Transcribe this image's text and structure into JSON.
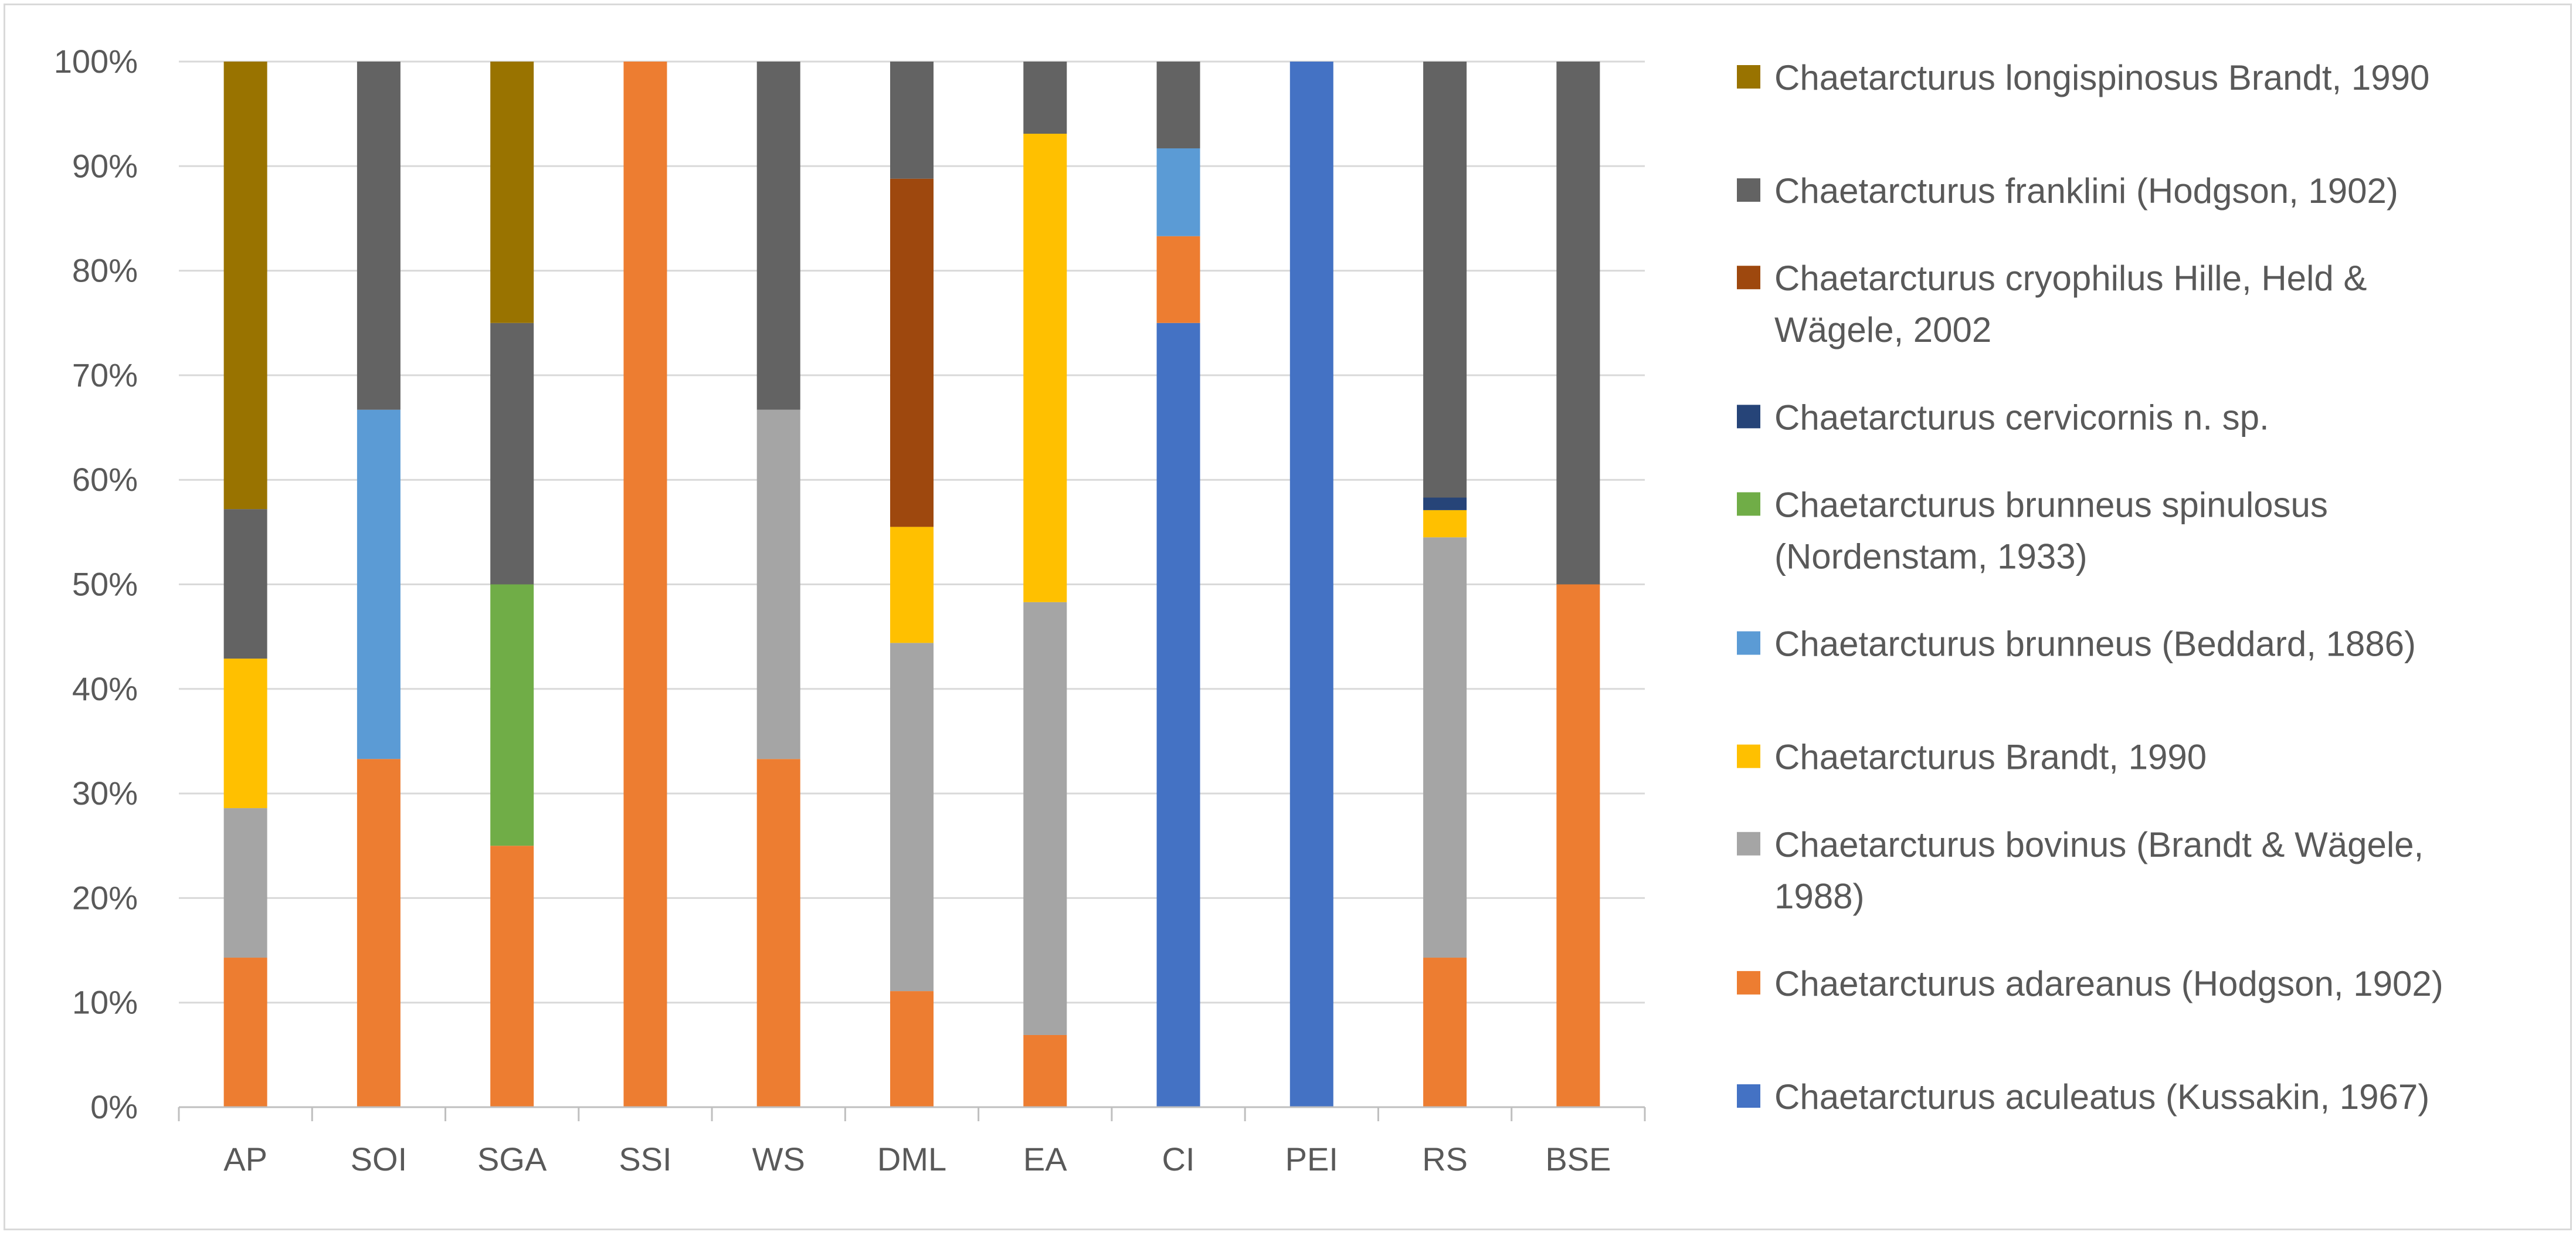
{
  "chart_data": {
    "type": "bar",
    "stacking": "percent",
    "title": "",
    "xlabel": "",
    "ylabel": "",
    "ylim": [
      0,
      100
    ],
    "y_ticks": [
      "0%",
      "10%",
      "20%",
      "30%",
      "40%",
      "50%",
      "60%",
      "70%",
      "80%",
      "90%",
      "100%"
    ],
    "grid": true,
    "legend_position": "right",
    "categories": [
      "AP",
      "SOI",
      "SGA",
      "SSI",
      "WS",
      "DML",
      "EA",
      "CI",
      "PEI",
      "RS",
      "BSE"
    ],
    "series": [
      {
        "name": "Chaetarcturus aculeatus (Kussakin, 1967)",
        "legend_lines": [
          "Chaetarcturus aculeatus (Kussakin, 1967)"
        ],
        "color": "#4472C4",
        "values": [
          0,
          0,
          0,
          0,
          0,
          0,
          0,
          75,
          100,
          0,
          0
        ]
      },
      {
        "name": "Chaetarcturus adareanus (Hodgson, 1902)",
        "legend_lines": [
          "Chaetarcturus adareanus (Hodgson, 1902)"
        ],
        "color": "#ED7D31",
        "values": [
          14.3,
          33.3,
          25,
          100,
          33.3,
          11.1,
          6.9,
          8.3,
          0,
          14.3,
          50
        ]
      },
      {
        "name": "Chaetarcturus bovinus (Brandt & Wägele, 1988)",
        "legend_lines": [
          "Chaetarcturus bovinus (Brandt & Wägele,",
          "1988)"
        ],
        "color": "#A5A5A5",
        "values": [
          14.3,
          0,
          0,
          0,
          33.4,
          33.3,
          41.4,
          0,
          0,
          40.2,
          0
        ]
      },
      {
        "name": "Chaetarcturus Brandt, 1990",
        "legend_lines": [
          "Chaetarcturus Brandt, 1990"
        ],
        "color": "#FFC000",
        "values": [
          14.3,
          0,
          0,
          0,
          0,
          11.1,
          44.8,
          0,
          0,
          2.6,
          0
        ]
      },
      {
        "name": "Chaetarcturus brunneus (Beddard, 1886)",
        "legend_lines": [
          "Chaetarcturus brunneus (Beddard, 1886)"
        ],
        "color": "#5B9BD5",
        "values": [
          0,
          33.4,
          0,
          0,
          0,
          0,
          0,
          8.4,
          0,
          0,
          0
        ]
      },
      {
        "name": "Chaetarcturus brunneus spinulosus (Nordenstam, 1933)",
        "legend_lines": [
          "Chaetarcturus brunneus spinulosus",
          "(Nordenstam, 1933)"
        ],
        "color": "#70AD47",
        "values": [
          0,
          0,
          25,
          0,
          0,
          0,
          0,
          0,
          0,
          0,
          0
        ]
      },
      {
        "name": "Chaetarcturus cervicornis n. sp.",
        "legend_lines": [
          "Chaetarcturus cervicornis n. sp."
        ],
        "color": "#264478",
        "values": [
          0,
          0,
          0,
          0,
          0,
          0,
          0,
          0,
          0,
          1.2,
          0
        ]
      },
      {
        "name": "Chaetarcturus cryophilus Hille, Held & Wägele, 2002",
        "legend_lines": [
          "Chaetarcturus cryophilus Hille, Held &",
          "Wägele, 2002"
        ],
        "color": "#9E480E",
        "values": [
          0,
          0,
          0,
          0,
          0,
          33.3,
          0,
          0,
          0,
          0,
          0
        ]
      },
      {
        "name": "Chaetarcturus franklini (Hodgson, 1902)",
        "legend_lines": [
          "Chaetarcturus franklini (Hodgson, 1902)"
        ],
        "color": "#636363",
        "values": [
          14.3,
          33.3,
          25,
          0,
          33.3,
          11.2,
          6.9,
          8.3,
          0,
          41.7,
          50
        ]
      },
      {
        "name": "Chaetarcturus longispinosus Brandt, 1990",
        "legend_lines": [
          "Chaetarcturus longispinosus Brandt, 1990"
        ],
        "color": "#997300",
        "values": [
          42.8,
          0,
          25,
          0,
          0,
          0,
          0,
          0,
          0,
          0,
          0
        ]
      }
    ]
  }
}
